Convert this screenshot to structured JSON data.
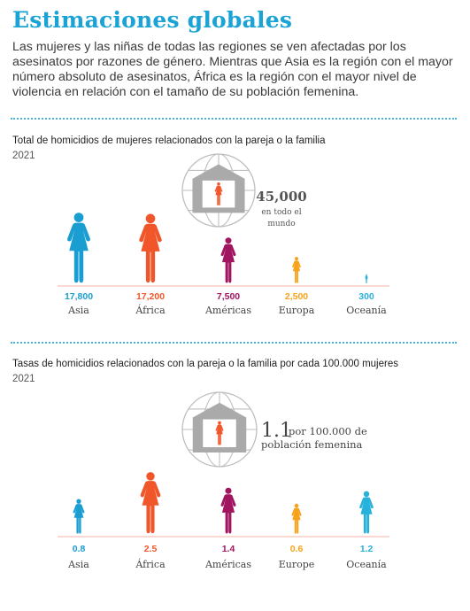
{
  "page": {
    "title": "Estimaciones globales",
    "intro": "Las mujeres y las niñas de todas las regiones se ven afectadas por los asesinatos por razones de género. Mientras que Asia es la región con el mayor número absoluto de asesinatos, África es la región con el mayor nivel de violencia en relación con el tamaño de su población femenina."
  },
  "colors": {
    "Asia": "#1a9ed1",
    "África": "#f1562a",
    "Américas": "#a1145f",
    "Europa": "#f7a21b",
    "Europe": "#f7a21b",
    "Oceanía": "#27b1db",
    "icon_gray": "#aaaaaa",
    "icon_orange": "#f1562a",
    "baseline": "#f3b3a6",
    "globe": "#bfbfbf"
  },
  "chart_data": [
    {
      "type": "pictograph",
      "title": "Total de homicidios de mujeres relacionados con la pareja o la familia",
      "subtitle": "2021",
      "total_value": "45,000",
      "total_caption": [
        "en todo el",
        "mundo"
      ],
      "categories": [
        "Asia",
        "África",
        "Américas",
        "Europa",
        "Oceanía"
      ],
      "values": [
        17800,
        17200,
        7500,
        2500,
        300
      ],
      "value_labels": [
        "17,800",
        "17,200",
        "7,500",
        "2,500",
        "300"
      ]
    },
    {
      "type": "pictograph",
      "title": "Tasas de homicidios relacionados con la pareja o la familia por cada 100.000 mujeres",
      "subtitle": "2021",
      "total_value": "1.1",
      "total_caption": [
        "por 100.000 de",
        "población femenina"
      ],
      "categories": [
        "Asia",
        "África",
        "Américas",
        "Europe",
        "Oceanía"
      ],
      "values": [
        0.8,
        2.5,
        1.4,
        0.6,
        1.2
      ],
      "value_labels": [
        "0.8",
        "2.5",
        "1.4",
        "0.6",
        "1.2"
      ]
    }
  ]
}
